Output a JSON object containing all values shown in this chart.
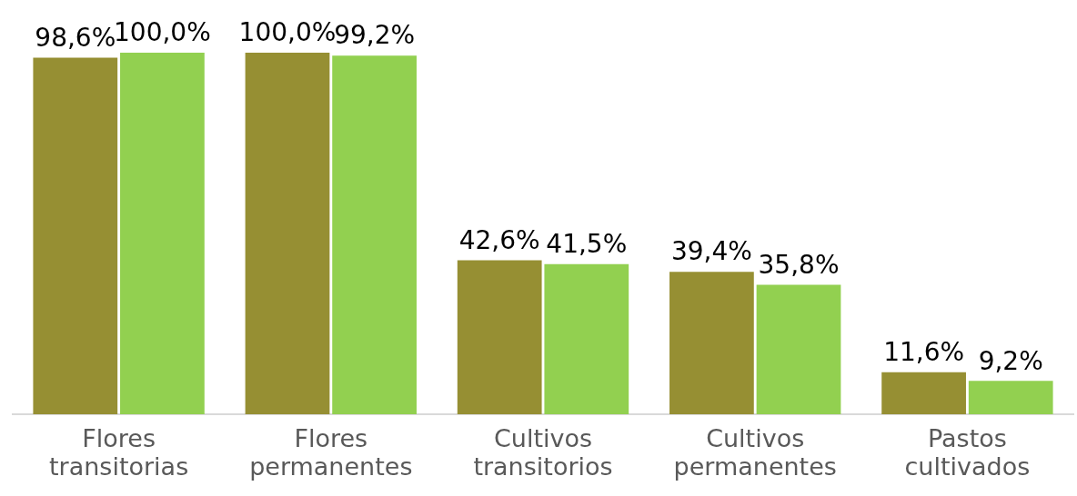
{
  "chart_data": {
    "type": "bar",
    "categories": [
      "Flores transitorias",
      "Flores permanentes",
      "Cultivos transitorios",
      "Cultivos permanentes",
      "Pastos cultivados"
    ],
    "series": [
      {
        "color": "#968f33",
        "values": [
          98.6,
          100.0,
          42.6,
          39.4,
          11.6
        ],
        "value_labels": [
          "98,6%",
          "100,0%",
          "42,6%",
          "39,4%",
          "11,6%"
        ]
      },
      {
        "color": "#92d050",
        "values": [
          100.0,
          99.2,
          41.5,
          35.8,
          9.2
        ],
        "value_labels": [
          "100,0%",
          "99,2%",
          "41,5%",
          "35,8%",
          "9,2%"
        ]
      }
    ],
    "grid": false,
    "legend": false,
    "tick_labels": "x"
  }
}
